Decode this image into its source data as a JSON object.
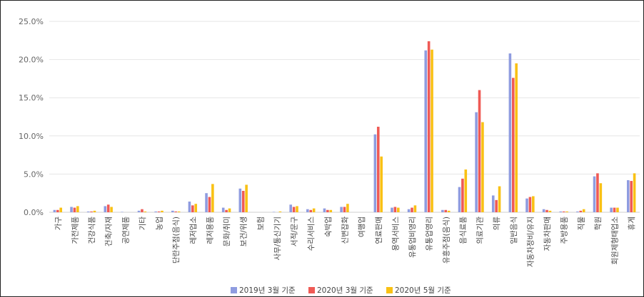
{
  "chart_data": {
    "type": "bar",
    "title": "",
    "xlabel": "",
    "ylabel": "",
    "ylim": [
      0,
      25
    ],
    "y_ticks": [
      "0.0%",
      "5.0%",
      "10.0%",
      "15.0%",
      "20.0%",
      "25.0%"
    ],
    "grid": "horizontal",
    "legend_position": "bottom",
    "categories": [
      "가구",
      "가전제품",
      "건강식품",
      "건축/자재",
      "공연제품",
      "기타",
      "농업",
      "단란주점(음식)",
      "레저업소",
      "레저용품",
      "문화/취미",
      "보건/위생",
      "보험",
      "사무/통신기기",
      "서적/문구",
      "수리서비스",
      "숙박업",
      "신변잡화",
      "여행업",
      "연료판매",
      "용역서비스",
      "유통업비영리",
      "유통업영리",
      "유흥주점(음식)",
      "음식료품",
      "의료기관",
      "의류",
      "일반음식",
      "자동차정비/유지",
      "자동차판매",
      "주방용품",
      "직물",
      "학원",
      "회원제형태업소",
      "휴게"
    ],
    "series": [
      {
        "name": "2019년 3월 기준",
        "color": "#8f9ce0",
        "values": [
          0.3,
          0.7,
          0.1,
          0.8,
          0.05,
          0.2,
          0.1,
          0.2,
          1.4,
          2.5,
          0.6,
          3.1,
          0.0,
          0.05,
          1.0,
          0.4,
          0.5,
          0.7,
          0.0,
          10.2,
          0.6,
          0.4,
          21.2,
          0.3,
          3.3,
          13.1,
          2.2,
          20.8,
          1.8,
          0.4,
          0.1,
          0.1,
          4.7,
          0.6,
          4.2
        ]
      },
      {
        "name": "2020년 3월 기준",
        "color": "#ef5a55",
        "values": [
          0.3,
          0.6,
          0.1,
          1.0,
          0.0,
          0.4,
          0.1,
          0.1,
          0.9,
          2.0,
          0.3,
          2.8,
          0.0,
          0.0,
          0.7,
          0.3,
          0.3,
          0.7,
          0.0,
          11.2,
          0.7,
          0.6,
          22.4,
          0.3,
          4.4,
          16.0,
          1.6,
          17.6,
          2.0,
          0.3,
          0.1,
          0.2,
          5.1,
          0.6,
          4.1
        ]
      },
      {
        "name": "2020년 5월 기준",
        "color": "#f9c114",
        "values": [
          0.6,
          0.8,
          0.2,
          0.7,
          0.0,
          0.1,
          0.2,
          0.1,
          1.1,
          3.7,
          0.5,
          3.6,
          0.0,
          0.1,
          0.8,
          0.5,
          0.3,
          1.1,
          0.0,
          7.3,
          0.6,
          0.9,
          21.3,
          0.2,
          5.6,
          11.8,
          3.4,
          19.5,
          2.1,
          0.2,
          0.1,
          0.4,
          3.8,
          0.6,
          5.1
        ]
      }
    ]
  }
}
